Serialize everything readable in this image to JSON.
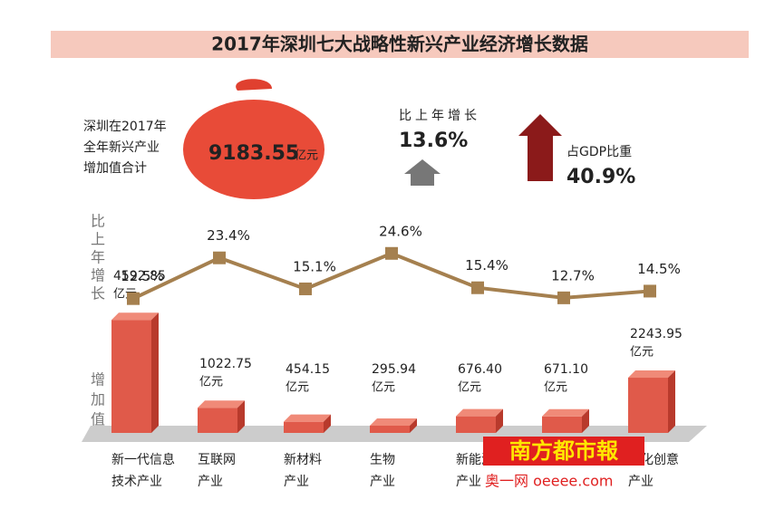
{
  "header": {
    "title": "2017年深圳七大战略性新兴产业经济增长数据",
    "total_label": [
      "深圳在2017年",
      "全年新兴产业",
      "增加值合计"
    ],
    "total": "9183.55",
    "total_unit": "亿元",
    "growth_label": "比上年增长",
    "growth": "13.6%",
    "gdp_label": "占GDP比重",
    "gdp": "40.9%"
  },
  "chart_data": {
    "type": "bar-line",
    "categories": [
      [
        "新一代信息",
        "技术产业"
      ],
      [
        "互联网",
        "产业"
      ],
      [
        "新材料",
        "产业"
      ],
      [
        "生物",
        "产业"
      ],
      [
        "新能源",
        "产业"
      ],
      null,
      [
        "文化创意",
        "产业"
      ]
    ],
    "line_label": "比上年增长",
    "bar_label": "增加值",
    "line": {
      "name": "比上年增长",
      "color": "#a5804f",
      "values": [
        12.5,
        23.4,
        15.1,
        24.6,
        15.4,
        12.7,
        14.5
      ],
      "value_labels": [
        "12.5%",
        "23.4%",
        "15.1%",
        "24.6%",
        "15.4%",
        "12.7%",
        "14.5%"
      ],
      "ylim": [
        10,
        26
      ]
    },
    "bars": {
      "name": "增加值",
      "color": "#e05a4a",
      "values": [
        4592.85,
        1022.75,
        454.15,
        295.94,
        676.4,
        671.1,
        2243.95
      ],
      "value_labels": [
        "4592.85",
        "1022.75",
        "454.15",
        "295.94",
        "676.40",
        "671.10",
        "2243.95"
      ],
      "unit": "亿元",
      "ylim": [
        0,
        4600
      ]
    }
  },
  "watermark": {
    "brand": "南方都市報",
    "site": "奥一网 oeeee.com"
  }
}
